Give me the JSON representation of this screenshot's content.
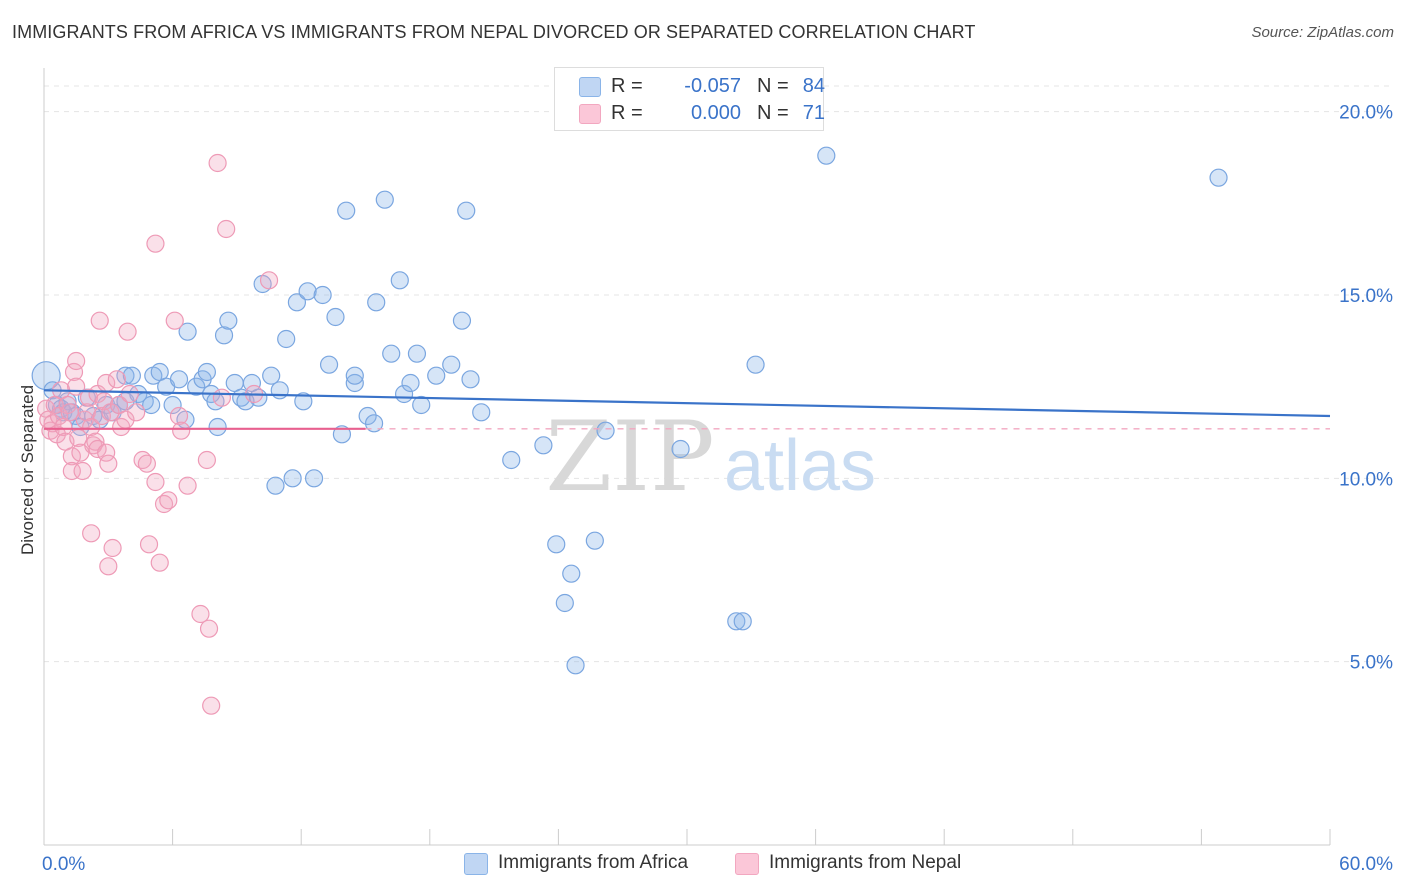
{
  "chart_data": {
    "type": "scatter",
    "title": "IMMIGRANTS FROM AFRICA VS IMMIGRANTS FROM NEPAL DIVORCED OR SEPARATED CORRELATION CHART",
    "source": "Source: ZipAtlas.com",
    "ylabel": "Divorced or Separated",
    "xlabel": "",
    "xlim": [
      0,
      60
    ],
    "ylim": [
      0,
      21
    ],
    "x_tick_labels": [
      "0.0%",
      "60.0%"
    ],
    "y_ticks": [
      {
        "value": 5,
        "label": "5.0%"
      },
      {
        "value": 10,
        "label": "10.0%"
      },
      {
        "value": 15,
        "label": "15.0%"
      },
      {
        "value": 20,
        "label": "20.0%"
      }
    ],
    "watermark": {
      "zip": "ZIP",
      "atlas": "atlas"
    },
    "legend": [
      {
        "r_label": "R =",
        "r_value": "-0.057",
        "n_label": "N =",
        "n_value": "84"
      },
      {
        "r_label": "R =",
        "r_value": "0.000",
        "n_label": "N =",
        "n_value": "71"
      }
    ],
    "series": [
      {
        "name": "Immigrants from Africa",
        "color": "#8ab4e8",
        "line_color": "#3a73c9",
        "trend": {
          "x0": 0,
          "y0": 12.4,
          "x1": 60,
          "y1": 11.7,
          "dashed": false
        },
        "points": [
          [
            0.1,
            12.8
          ],
          [
            0.4,
            12.4
          ],
          [
            0.6,
            12.0
          ],
          [
            0.8,
            11.9
          ],
          [
            0.9,
            11.8
          ],
          [
            1.1,
            12.1
          ],
          [
            1.3,
            11.8
          ],
          [
            1.5,
            11.7
          ],
          [
            1.7,
            11.4
          ],
          [
            2.0,
            12.2
          ],
          [
            2.3,
            11.7
          ],
          [
            2.6,
            11.6
          ],
          [
            2.9,
            12.0
          ],
          [
            3.2,
            11.8
          ],
          [
            3.5,
            12.0
          ],
          [
            3.8,
            12.1
          ],
          [
            3.8,
            12.8
          ],
          [
            4.1,
            12.8
          ],
          [
            4.4,
            12.3
          ],
          [
            4.7,
            12.1
          ],
          [
            5.0,
            12.0
          ],
          [
            5.1,
            12.8
          ],
          [
            5.4,
            12.9
          ],
          [
            5.7,
            12.5
          ],
          [
            6.0,
            12.0
          ],
          [
            6.3,
            12.7
          ],
          [
            6.6,
            11.6
          ],
          [
            6.7,
            14.0
          ],
          [
            7.1,
            12.5
          ],
          [
            7.4,
            12.7
          ],
          [
            7.6,
            12.9
          ],
          [
            7.8,
            12.3
          ],
          [
            8.0,
            12.1
          ],
          [
            8.1,
            11.4
          ],
          [
            8.4,
            13.9
          ],
          [
            8.6,
            14.3
          ],
          [
            8.9,
            12.6
          ],
          [
            9.2,
            12.2
          ],
          [
            9.4,
            12.1
          ],
          [
            9.7,
            12.6
          ],
          [
            10.0,
            12.2
          ],
          [
            10.2,
            15.3
          ],
          [
            10.6,
            12.8
          ],
          [
            10.8,
            9.8
          ],
          [
            11.0,
            12.4
          ],
          [
            11.3,
            13.8
          ],
          [
            11.6,
            10.0
          ],
          [
            11.8,
            14.8
          ],
          [
            12.1,
            12.1
          ],
          [
            12.3,
            15.1
          ],
          [
            12.6,
            10.0
          ],
          [
            13.0,
            15.0
          ],
          [
            13.3,
            13.1
          ],
          [
            13.6,
            14.4
          ],
          [
            13.9,
            11.2
          ],
          [
            14.1,
            17.3
          ],
          [
            14.5,
            12.6
          ],
          [
            14.5,
            12.8
          ],
          [
            15.1,
            11.7
          ],
          [
            15.4,
            11.5
          ],
          [
            15.5,
            14.8
          ],
          [
            15.9,
            17.6
          ],
          [
            16.2,
            13.4
          ],
          [
            16.6,
            15.4
          ],
          [
            16.8,
            12.3
          ],
          [
            17.1,
            12.6
          ],
          [
            17.4,
            13.4
          ],
          [
            17.6,
            12.0
          ],
          [
            18.3,
            12.8
          ],
          [
            19.0,
            13.1
          ],
          [
            19.5,
            14.3
          ],
          [
            19.7,
            17.3
          ],
          [
            19.9,
            12.7
          ],
          [
            20.4,
            11.8
          ],
          [
            21.8,
            10.5
          ],
          [
            23.3,
            10.9
          ],
          [
            23.9,
            8.2
          ],
          [
            24.3,
            6.6
          ],
          [
            24.6,
            7.4
          ],
          [
            24.8,
            4.9
          ],
          [
            25.7,
            8.3
          ],
          [
            26.2,
            11.3
          ],
          [
            29.7,
            10.8
          ],
          [
            32.3,
            6.1
          ],
          [
            32.6,
            6.1
          ],
          [
            33.2,
            13.1
          ],
          [
            36.5,
            18.8
          ],
          [
            54.8,
            18.2
          ]
        ]
      },
      {
        "name": "Immigrants from Nepal",
        "color": "#f2a7c0",
        "line_color": "#e8608f",
        "trend": {
          "x0": 0,
          "y0": 11.35,
          "x1": 15,
          "y1": 11.35,
          "dashed_to": 60
        },
        "points": [
          [
            0.1,
            11.9
          ],
          [
            0.2,
            11.6
          ],
          [
            0.3,
            11.3
          ],
          [
            0.4,
            11.5
          ],
          [
            0.5,
            12.0
          ],
          [
            0.6,
            11.2
          ],
          [
            0.7,
            11.7
          ],
          [
            0.8,
            12.4
          ],
          [
            0.9,
            11.4
          ],
          [
            1.0,
            11.0
          ],
          [
            1.1,
            12.0
          ],
          [
            1.2,
            11.8
          ],
          [
            1.3,
            10.6
          ],
          [
            1.3,
            10.2
          ],
          [
            1.4,
            12.9
          ],
          [
            1.5,
            13.2
          ],
          [
            1.5,
            12.5
          ],
          [
            1.6,
            11.1
          ],
          [
            1.7,
            10.7
          ],
          [
            1.8,
            10.2
          ],
          [
            1.9,
            11.6
          ],
          [
            2.0,
            11.8
          ],
          [
            2.1,
            12.2
          ],
          [
            2.2,
            11.4
          ],
          [
            2.2,
            8.5
          ],
          [
            2.3,
            10.9
          ],
          [
            2.4,
            11.0
          ],
          [
            2.5,
            12.3
          ],
          [
            2.5,
            10.8
          ],
          [
            2.6,
            14.3
          ],
          [
            2.7,
            11.7
          ],
          [
            2.8,
            12.1
          ],
          [
            2.9,
            10.7
          ],
          [
            2.9,
            12.6
          ],
          [
            3.0,
            7.6
          ],
          [
            3.0,
            10.4
          ],
          [
            3.1,
            11.8
          ],
          [
            3.2,
            8.1
          ],
          [
            3.4,
            12.7
          ],
          [
            3.5,
            12.0
          ],
          [
            3.6,
            11.4
          ],
          [
            3.8,
            11.6
          ],
          [
            3.9,
            14.0
          ],
          [
            4.0,
            12.3
          ],
          [
            4.3,
            11.8
          ],
          [
            4.6,
            10.5
          ],
          [
            4.8,
            10.4
          ],
          [
            4.9,
            8.2
          ],
          [
            5.2,
            16.4
          ],
          [
            5.2,
            9.9
          ],
          [
            5.4,
            7.7
          ],
          [
            5.6,
            9.3
          ],
          [
            5.8,
            9.4
          ],
          [
            6.1,
            14.3
          ],
          [
            6.3,
            11.7
          ],
          [
            6.4,
            11.3
          ],
          [
            6.7,
            9.8
          ],
          [
            7.3,
            6.3
          ],
          [
            7.6,
            10.5
          ],
          [
            7.7,
            5.9
          ],
          [
            7.8,
            3.8
          ],
          [
            8.1,
            18.6
          ],
          [
            8.3,
            12.2
          ],
          [
            8.5,
            16.8
          ],
          [
            9.8,
            12.3
          ],
          [
            10.5,
            15.4
          ]
        ]
      }
    ]
  }
}
